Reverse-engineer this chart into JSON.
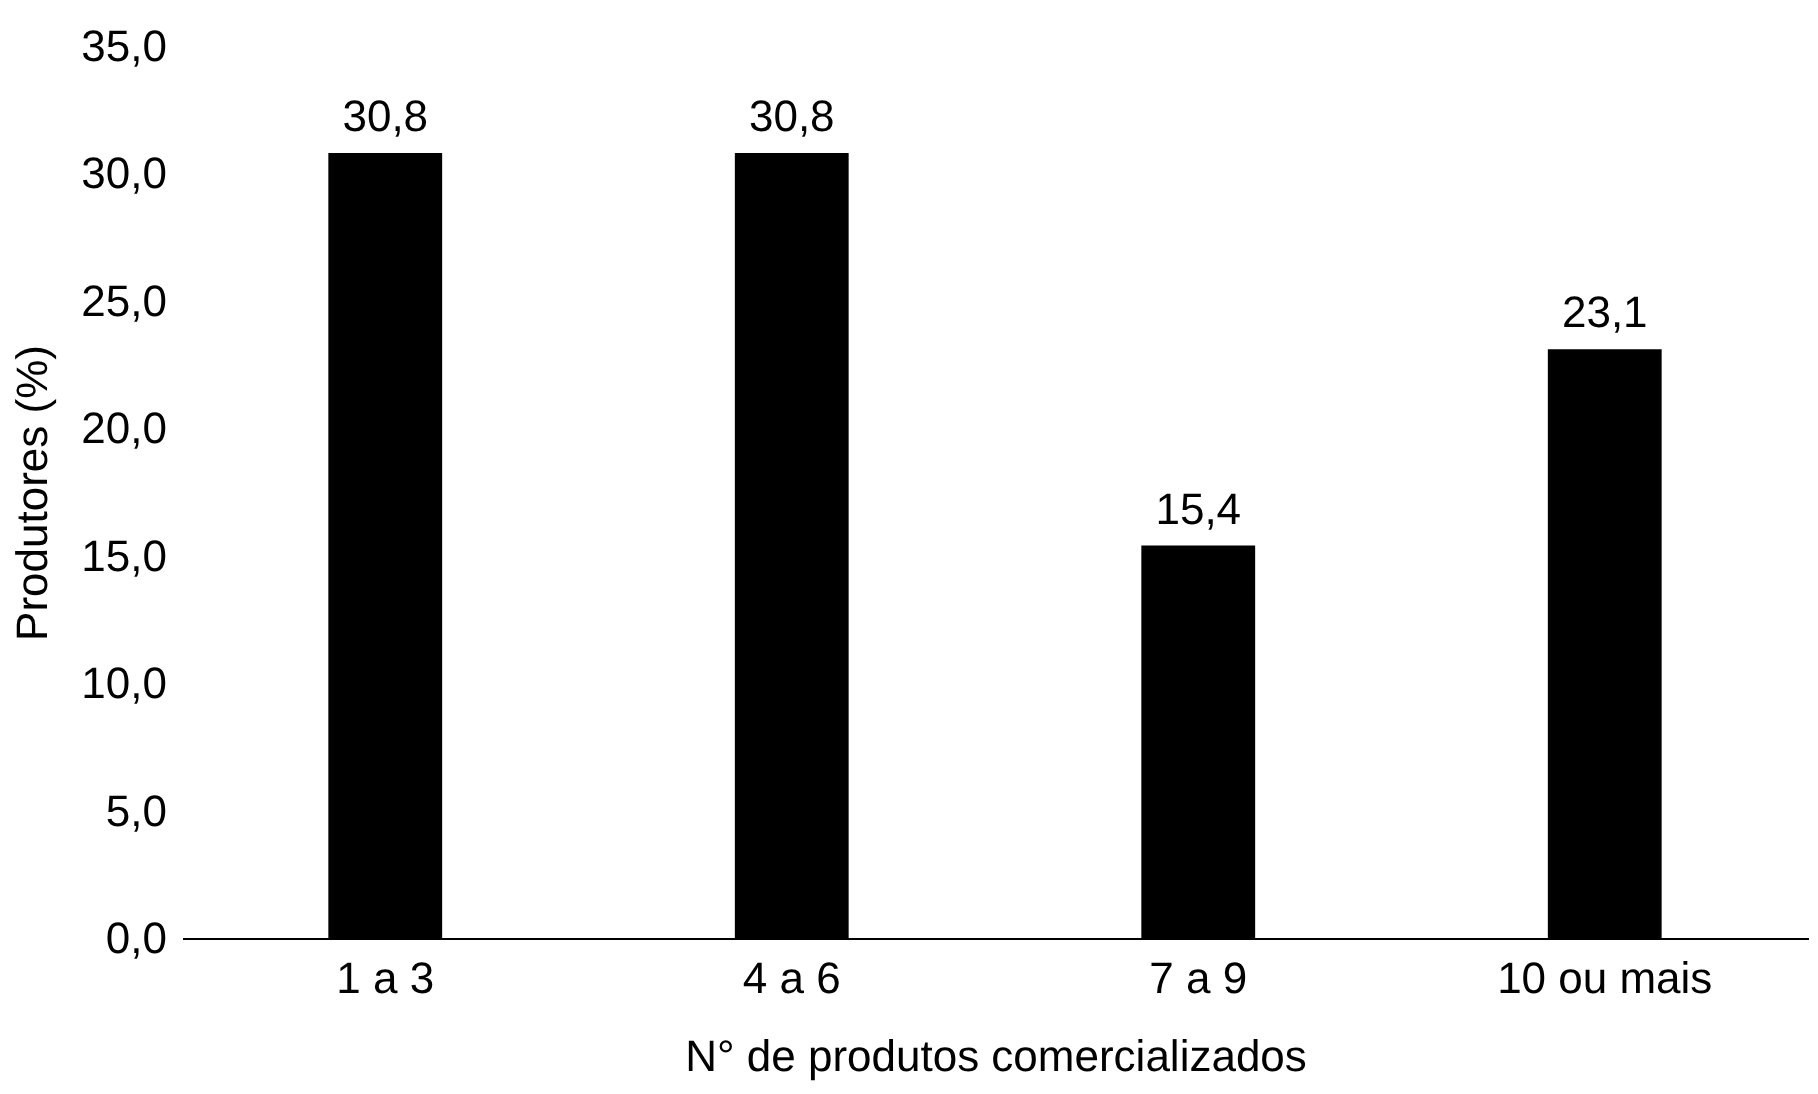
{
  "chart_data": {
    "type": "bar",
    "xlabel": "N° de produtos comercializados",
    "ylabel": "Produtores (%)",
    "categories": [
      "1 a 3",
      "4 a 6",
      "7 a 9",
      "10 ou mais"
    ],
    "values": [
      30.8,
      30.8,
      15.4,
      23.1
    ],
    "value_labels": [
      "30,8",
      "30,8",
      "15,4",
      "23,1"
    ],
    "color": "#000000",
    "ylim": [
      0,
      35
    ],
    "yticks": [
      {
        "value": 0,
        "label": "0,0"
      },
      {
        "value": 5,
        "label": "5,0"
      },
      {
        "value": 10,
        "label": "10,0"
      },
      {
        "value": 15,
        "label": "15,0"
      },
      {
        "value": 20,
        "label": "20,0"
      },
      {
        "value": 25,
        "label": "25,0"
      },
      {
        "value": 30,
        "label": "30,0"
      },
      {
        "value": 35,
        "label": "35,0"
      }
    ],
    "grid": false
  }
}
